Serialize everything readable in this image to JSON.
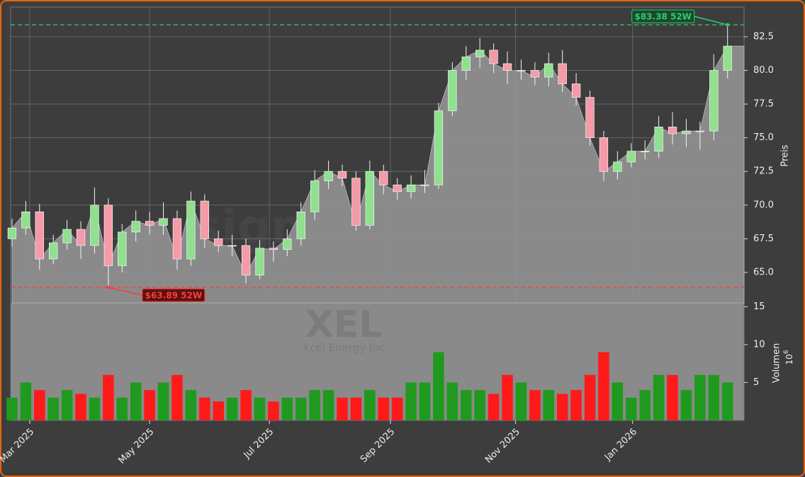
{
  "chart_data": [
    {
      "type": "candlestick",
      "watermark": "signale.trade",
      "y_label": "Preis",
      "categories": [
        null,
        null,
        null,
        null,
        null,
        null,
        null,
        null,
        null,
        null,
        null,
        null,
        null,
        null,
        null,
        null,
        null,
        null,
        null,
        null,
        null,
        null,
        null,
        null,
        null,
        null,
        null,
        null,
        null,
        null,
        null,
        null,
        null,
        null,
        null,
        null,
        null,
        null,
        null,
        null,
        null,
        null,
        null,
        null,
        null,
        null,
        null,
        null,
        null,
        null,
        null,
        null,
        null
      ],
      "open": [
        67.5,
        68.3,
        69.5,
        66.0,
        67.2,
        68.2,
        67.0,
        70.0,
        65.5,
        68.0,
        68.8,
        68.5,
        69.0,
        66.0,
        70.3,
        67.5,
        67.0,
        67.0,
        64.8,
        66.8,
        66.7,
        67.5,
        69.5,
        71.8,
        72.5,
        72.0,
        68.5,
        72.5,
        71.5,
        71.0,
        71.5,
        71.5,
        77.0,
        80.0,
        81.0,
        81.5,
        80.5,
        80.0,
        80.0,
        79.5,
        80.5,
        79.0,
        78.0,
        75.0,
        72.5,
        73.2,
        74.0,
        74.0,
        75.8,
        75.3,
        75.5,
        75.5,
        80.0
      ],
      "high": [
        69.0,
        70.3,
        70.1,
        67.8,
        68.9,
        68.8,
        71.3,
        70.5,
        68.6,
        69.6,
        69.5,
        70.2,
        69.6,
        71.0,
        70.8,
        68.1,
        67.8,
        67.5,
        67.4,
        67.3,
        68.2,
        70.2,
        72.6,
        73.3,
        73.0,
        72.5,
        73.3,
        73.0,
        72.0,
        72.2,
        72.6,
        77.6,
        80.6,
        81.8,
        82.4,
        82.0,
        81.4,
        80.8,
        80.6,
        81.3,
        81.5,
        79.8,
        78.5,
        75.5,
        74.0,
        74.6,
        74.8,
        76.6,
        76.9,
        76.4,
        76.2,
        81.2,
        83.38
      ],
      "low": [
        66.9,
        67.8,
        65.2,
        65.6,
        66.7,
        66.0,
        66.4,
        63.89,
        65.0,
        67.3,
        67.8,
        67.8,
        65.2,
        65.5,
        66.8,
        66.5,
        66.2,
        64.2,
        64.5,
        65.8,
        66.2,
        67.0,
        68.9,
        71.2,
        71.4,
        68.1,
        68.2,
        70.8,
        70.4,
        70.5,
        70.9,
        71.2,
        76.6,
        79.3,
        80.2,
        79.8,
        79.0,
        79.3,
        78.9,
        78.8,
        78.4,
        77.4,
        74.4,
        71.8,
        71.9,
        72.8,
        73.4,
        73.5,
        74.5,
        74.3,
        74.1,
        74.8,
        79.4
      ],
      "close": [
        68.3,
        69.5,
        66.0,
        67.2,
        68.2,
        67.0,
        70.0,
        65.5,
        68.0,
        68.8,
        68.5,
        69.0,
        66.0,
        70.3,
        67.5,
        67.0,
        67.0,
        64.8,
        66.8,
        66.7,
        67.5,
        69.5,
        71.8,
        72.5,
        72.0,
        68.5,
        72.5,
        71.5,
        71.0,
        71.5,
        71.5,
        77.0,
        80.0,
        81.0,
        81.5,
        80.5,
        80.0,
        80.0,
        79.5,
        80.5,
        79.0,
        78.0,
        75.0,
        72.5,
        73.2,
        74.0,
        74.0,
        75.8,
        75.3,
        75.5,
        75.5,
        80.0,
        81.8
      ],
      "up_color": "#8fe08f",
      "down_color": "#f59aa8",
      "area_color": "#8a8a8a",
      "xlim": [
        -0.1,
        53.2
      ],
      "xticks": [
        {
          "value": 1.29,
          "label": "Mar 2025"
        },
        {
          "value": 10.0,
          "label": "May 2025"
        },
        {
          "value": 18.7,
          "label": "Jul 2025"
        },
        {
          "value": 27.5,
          "label": "Sep 2025"
        },
        {
          "value": 36.6,
          "label": "Nov 2025"
        },
        {
          "value": 45.1,
          "label": "Jan 2026"
        }
      ],
      "ylim": [
        62.74,
        84.7
      ],
      "yticks": [
        {
          "value": 65,
          "label": "65.0"
        },
        67.5,
        {
          "value": 70,
          "label": "70.0"
        },
        72.5,
        {
          "value": 75,
          "label": "75.0"
        },
        77.5,
        {
          "value": 80,
          "label": "80.0"
        },
        82.5
      ],
      "grid": true,
      "annotations": [
        {
          "text": "$83.38 52W",
          "value": 83.38,
          "color": "#2ecc71"
        },
        {
          "text": "$63.89 52W",
          "value": 63.89,
          "color": "#ff3b3b"
        }
      ]
    },
    {
      "type": "bar",
      "watermark": "XEL",
      "subtitle": "Xcel Energy Inc",
      "y_label": "Volumen",
      "y_unit": "10",
      "y_unit_exp": "6",
      "values": [
        3,
        5,
        4,
        3,
        4,
        3.5,
        3,
        6,
        3,
        5,
        4,
        5,
        6,
        4,
        3,
        2.5,
        3,
        4,
        3,
        2.5,
        3,
        3,
        4,
        4,
        3,
        3,
        4,
        3,
        3,
        5,
        5,
        9,
        5,
        4,
        4,
        3.5,
        6,
        5,
        4,
        4,
        3.5,
        4,
        6,
        9,
        5,
        3,
        4,
        6,
        6,
        4,
        6,
        6,
        5
      ],
      "up_color": "#1f9a1f",
      "down_color": "#ff1a1a",
      "ylim": [
        0,
        15.5
      ],
      "yticks": [
        5,
        10,
        15
      ]
    }
  ]
}
